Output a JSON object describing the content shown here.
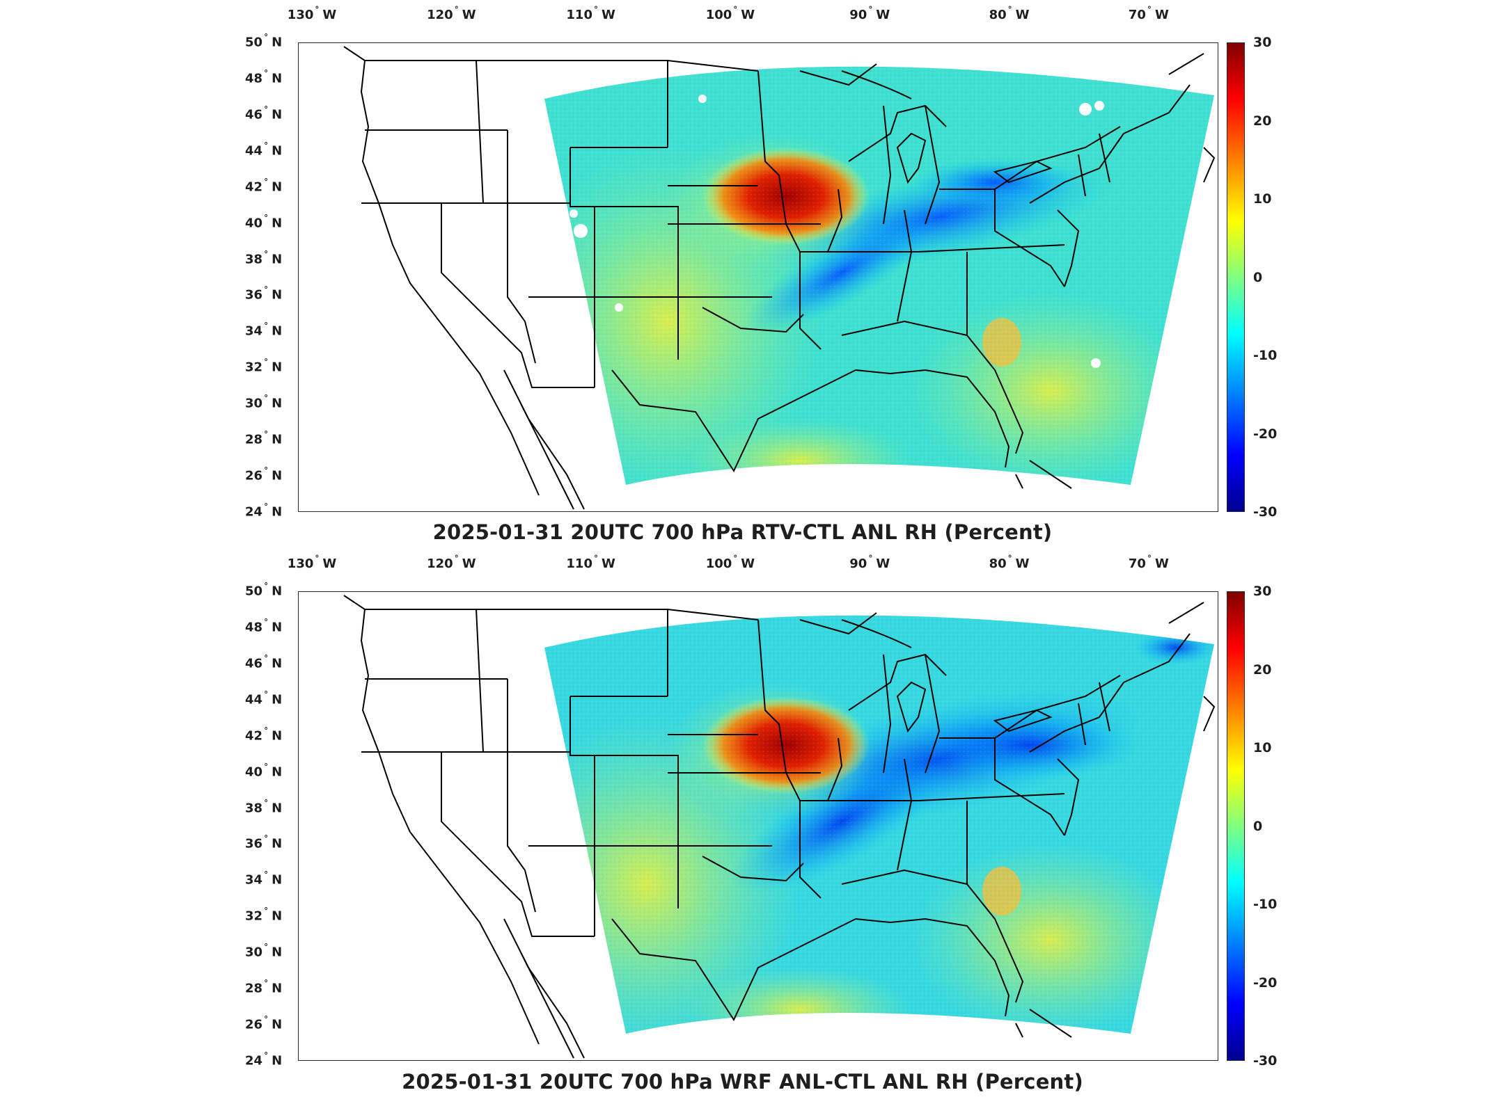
{
  "colors": {
    "colormap": [
      "#00008f",
      "#0000ff",
      "#0080ff",
      "#00ffff",
      "#80ff80",
      "#ffff00",
      "#ff8000",
      "#ff0000",
      "#800000"
    ],
    "border": "#000000"
  },
  "panels": [
    {
      "id": "top",
      "title": "2025-01-31 20UTC 700 hPa RTV-CTL ANL RH (Percent)",
      "lon_ticks": [
        "130",
        "120",
        "110",
        "100",
        "90",
        "80",
        "70"
      ],
      "lon_suffix": "W",
      "lat_ticks": [
        "50",
        "48",
        "46",
        "44",
        "42",
        "40",
        "38",
        "36",
        "34",
        "32",
        "30",
        "28",
        "26",
        "24"
      ],
      "lat_suffix": "N",
      "colorbar_ticks": [
        "30",
        "20",
        "10",
        "0",
        "-10",
        "-20",
        "-30"
      ],
      "colorbar_range": [
        -30,
        30
      ],
      "map_extent": {
        "lon": [
          -131,
          -65
        ],
        "lat": [
          24,
          50
        ]
      }
    },
    {
      "id": "bottom",
      "title": "2025-01-31 20UTC 700 hPa WRF ANL-CTL ANL RH (Percent)",
      "lon_ticks": [
        "130",
        "120",
        "110",
        "100",
        "90",
        "80",
        "70"
      ],
      "lon_suffix": "W",
      "lat_ticks": [
        "50",
        "48",
        "46",
        "44",
        "42",
        "40",
        "38",
        "36",
        "34",
        "32",
        "30",
        "28",
        "26",
        "24"
      ],
      "lat_suffix": "N",
      "colorbar_ticks": [
        "30",
        "20",
        "10",
        "0",
        "-10",
        "-20",
        "-30"
      ],
      "colorbar_range": [
        -30,
        30
      ],
      "map_extent": {
        "lon": [
          -131,
          -65
        ],
        "lat": [
          24,
          50
        ]
      }
    }
  ]
}
